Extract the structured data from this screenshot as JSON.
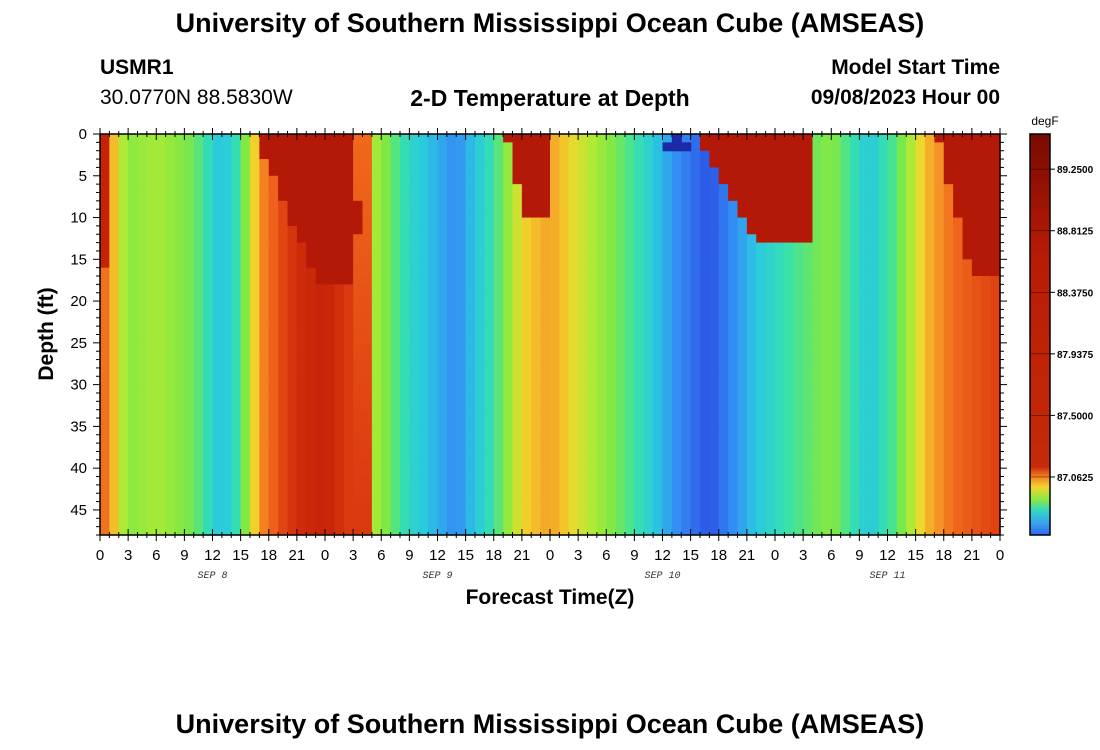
{
  "chart_data": {
    "type": "heatmap",
    "title": "University of Southern Mississippi Ocean Cube (AMSEAS)",
    "subtitle": "2-D Temperature at Depth",
    "station": "USMR1",
    "location": "30.0770N  88.5830W",
    "model_start_label": "Model Start Time",
    "model_start_value": "09/08/2023 Hour 00",
    "xlabel": "Forecast Time(Z)",
    "ylabel": "Depth (ft)",
    "x_ticks": [
      "0",
      "3",
      "6",
      "9",
      "12",
      "15",
      "18",
      "21",
      "0",
      "3",
      "6",
      "9",
      "12",
      "15",
      "18",
      "21",
      "0",
      "3",
      "6",
      "9",
      "12",
      "15",
      "18",
      "21",
      "0",
      "3",
      "6",
      "9",
      "12",
      "15",
      "18",
      "21",
      "0"
    ],
    "day_labels": [
      "SEP 8",
      "SEP 9",
      "SEP 10",
      "SEP 11"
    ],
    "y_ticks": [
      "0",
      "5",
      "10",
      "15",
      "20",
      "25",
      "30",
      "35",
      "40",
      "45"
    ],
    "xlim_hours": [
      0,
      96
    ],
    "ylim_ft": [
      0,
      48
    ],
    "colorbar_unit": "degF",
    "colorbar_ticks": [
      "89.2500",
      "88.8125",
      "88.3750",
      "87.9375",
      "87.5000",
      "87.0625"
    ],
    "value_range_degF": [
      86.65,
      89.5
    ]
  },
  "footer_title": "University of Southern Mississippi Ocean Cube (AMSEAS)"
}
